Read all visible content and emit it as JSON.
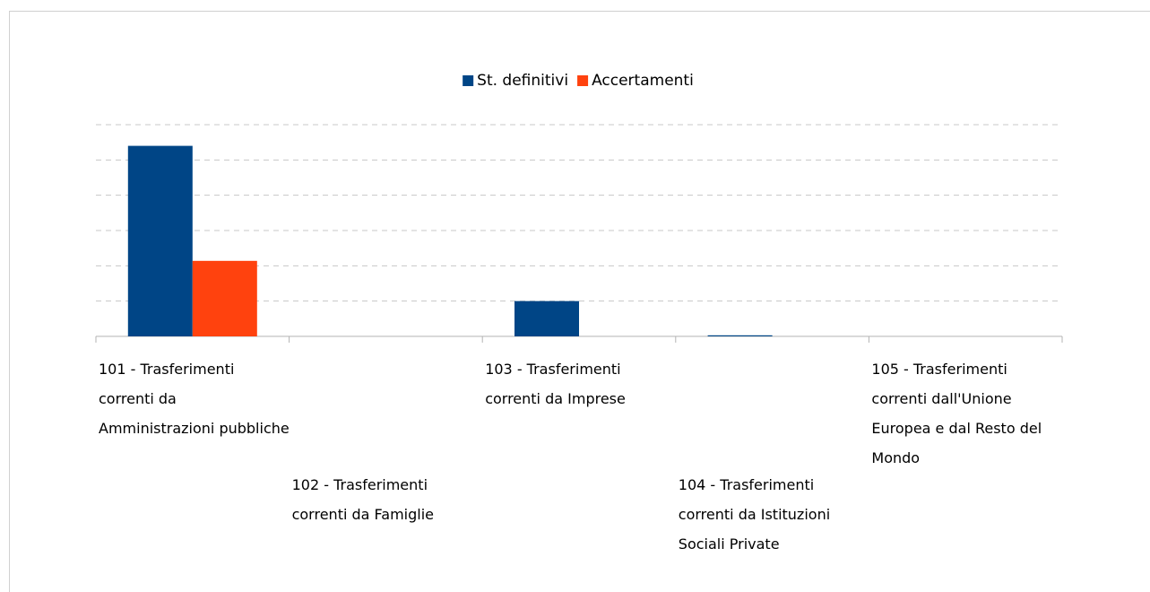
{
  "chart_data": {
    "type": "bar",
    "categories": [
      "101 - Trasferimenti correnti da Amministrazioni pubbliche",
      "102 - Trasferimenti correnti da Famiglie",
      "103 - Trasferimenti correnti da Imprese",
      "104 - Trasferimenti correnti da Istituzioni Sociali Private",
      "105 - Trasferimenti correnti dall'Unione Europea e dal Resto del Mondo"
    ],
    "series": [
      {
        "name": "St. definitivi",
        "color": "#004586",
        "values": [
          5.4,
          0,
          1.0,
          0.03,
          0
        ]
      },
      {
        "name": "Accertamenti",
        "color": "#ff420e",
        "values": [
          2.14,
          0,
          0,
          0,
          0
        ]
      }
    ],
    "ylim": [
      0,
      6
    ],
    "yticks": [
      0,
      1,
      2,
      3,
      4,
      5,
      6
    ],
    "grid": true,
    "legend": "top"
  }
}
